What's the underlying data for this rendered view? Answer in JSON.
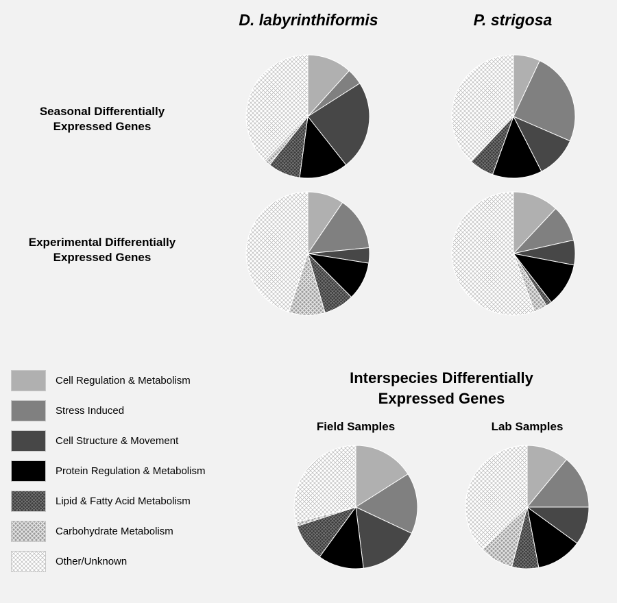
{
  "headers": {
    "species_1": "D. labyrinthiformis",
    "species_2": "P. strigosa"
  },
  "row_labels": {
    "seasonal": [
      "Seasonal Differentially",
      "Expressed Genes"
    ],
    "experimental": [
      "Experimental Differentially",
      "Expressed Genes"
    ]
  },
  "interspecies": {
    "title": [
      "Interspecies Differentially",
      "Expressed Genes"
    ],
    "field_label": "Field Samples",
    "lab_label": "Lab Samples"
  },
  "legend": [
    {
      "label": "Cell Regulation & Metabolism",
      "fill": "#b0b0b0"
    },
    {
      "label": "Stress Induced",
      "fill": "#808080"
    },
    {
      "label": "Cell Structure & Movement",
      "fill": "#474747"
    },
    {
      "label": "Protein Regulation & Metabolism",
      "fill": "#000000"
    },
    {
      "label": "Lipid & Fatty Acid Metabolism",
      "fill": "pattern:lipid"
    },
    {
      "label": "Carbohydrate Metabolism",
      "fill": "pattern:carb"
    },
    {
      "label": "Other/Unknown",
      "fill": "pattern:other"
    }
  ],
  "chart_data": [
    {
      "type": "pie",
      "row": "Seasonal Differentially Expressed Genes",
      "column": "D. labyrinthiformis",
      "categories": [
        "Cell Regulation & Metabolism",
        "Stress Induced",
        "Cell Structure & Movement",
        "Protein Regulation & Metabolism",
        "Lipid & Fatty Acid Metabolism",
        "Carbohydrate Metabolism",
        "Other/Unknown"
      ],
      "values": [
        11,
        4,
        22,
        12,
        8,
        1.5,
        35.5
      ]
    },
    {
      "type": "pie",
      "row": "Seasonal Differentially Expressed Genes",
      "column": "P. strigosa",
      "categories": [
        "Cell Regulation & Metabolism",
        "Stress Induced",
        "Cell Structure & Movement",
        "Protein Regulation & Metabolism",
        "Lipid & Fatty Acid Metabolism",
        "Carbohydrate Metabolism",
        "Other/Unknown"
      ],
      "values": [
        7,
        24.5,
        11,
        13,
        6.5,
        0,
        38
      ]
    },
    {
      "type": "pie",
      "row": "Experimental Differentially Expressed Genes",
      "column": "D. labyrinthiformis",
      "categories": [
        "Cell Regulation & Metabolism",
        "Stress Induced",
        "Cell Structure & Movement",
        "Protein Regulation & Metabolism",
        "Lipid & Fatty Acid Metabolism",
        "Carbohydrate Metabolism",
        "Other/Unknown"
      ],
      "values": [
        9.5,
        14,
        4,
        10,
        8,
        9.5,
        45
      ]
    },
    {
      "type": "pie",
      "row": "Experimental Differentially Expressed Genes",
      "column": "P. strigosa",
      "categories": [
        "Cell Regulation & Metabolism",
        "Stress Induced",
        "Cell Structure & Movement",
        "Protein Regulation & Metabolism",
        "Lipid & Fatty Acid Metabolism",
        "Carbohydrate Metabolism",
        "Other/Unknown"
      ],
      "values": [
        12,
        9.5,
        6.5,
        11.5,
        1.5,
        3.5,
        55.5
      ]
    },
    {
      "type": "pie",
      "title": "Interspecies Differentially Expressed Genes",
      "column": "Field Samples",
      "categories": [
        "Cell Regulation & Metabolism",
        "Stress Induced",
        "Cell Structure & Movement",
        "Protein Regulation & Metabolism",
        "Lipid & Fatty Acid Metabolism",
        "Carbohydrate Metabolism",
        "Other/Unknown"
      ],
      "values": [
        16,
        16,
        16,
        12,
        10,
        1,
        29
      ]
    },
    {
      "type": "pie",
      "title": "Interspecies Differentially Expressed Genes",
      "column": "Lab Samples",
      "categories": [
        "Cell Regulation & Metabolism",
        "Stress Induced",
        "Cell Structure & Movement",
        "Protein Regulation & Metabolism",
        "Lipid & Fatty Acid Metabolism",
        "Carbohydrate Metabolism",
        "Other/Unknown"
      ],
      "values": [
        11,
        14,
        10,
        12,
        7,
        9,
        37
      ]
    }
  ]
}
